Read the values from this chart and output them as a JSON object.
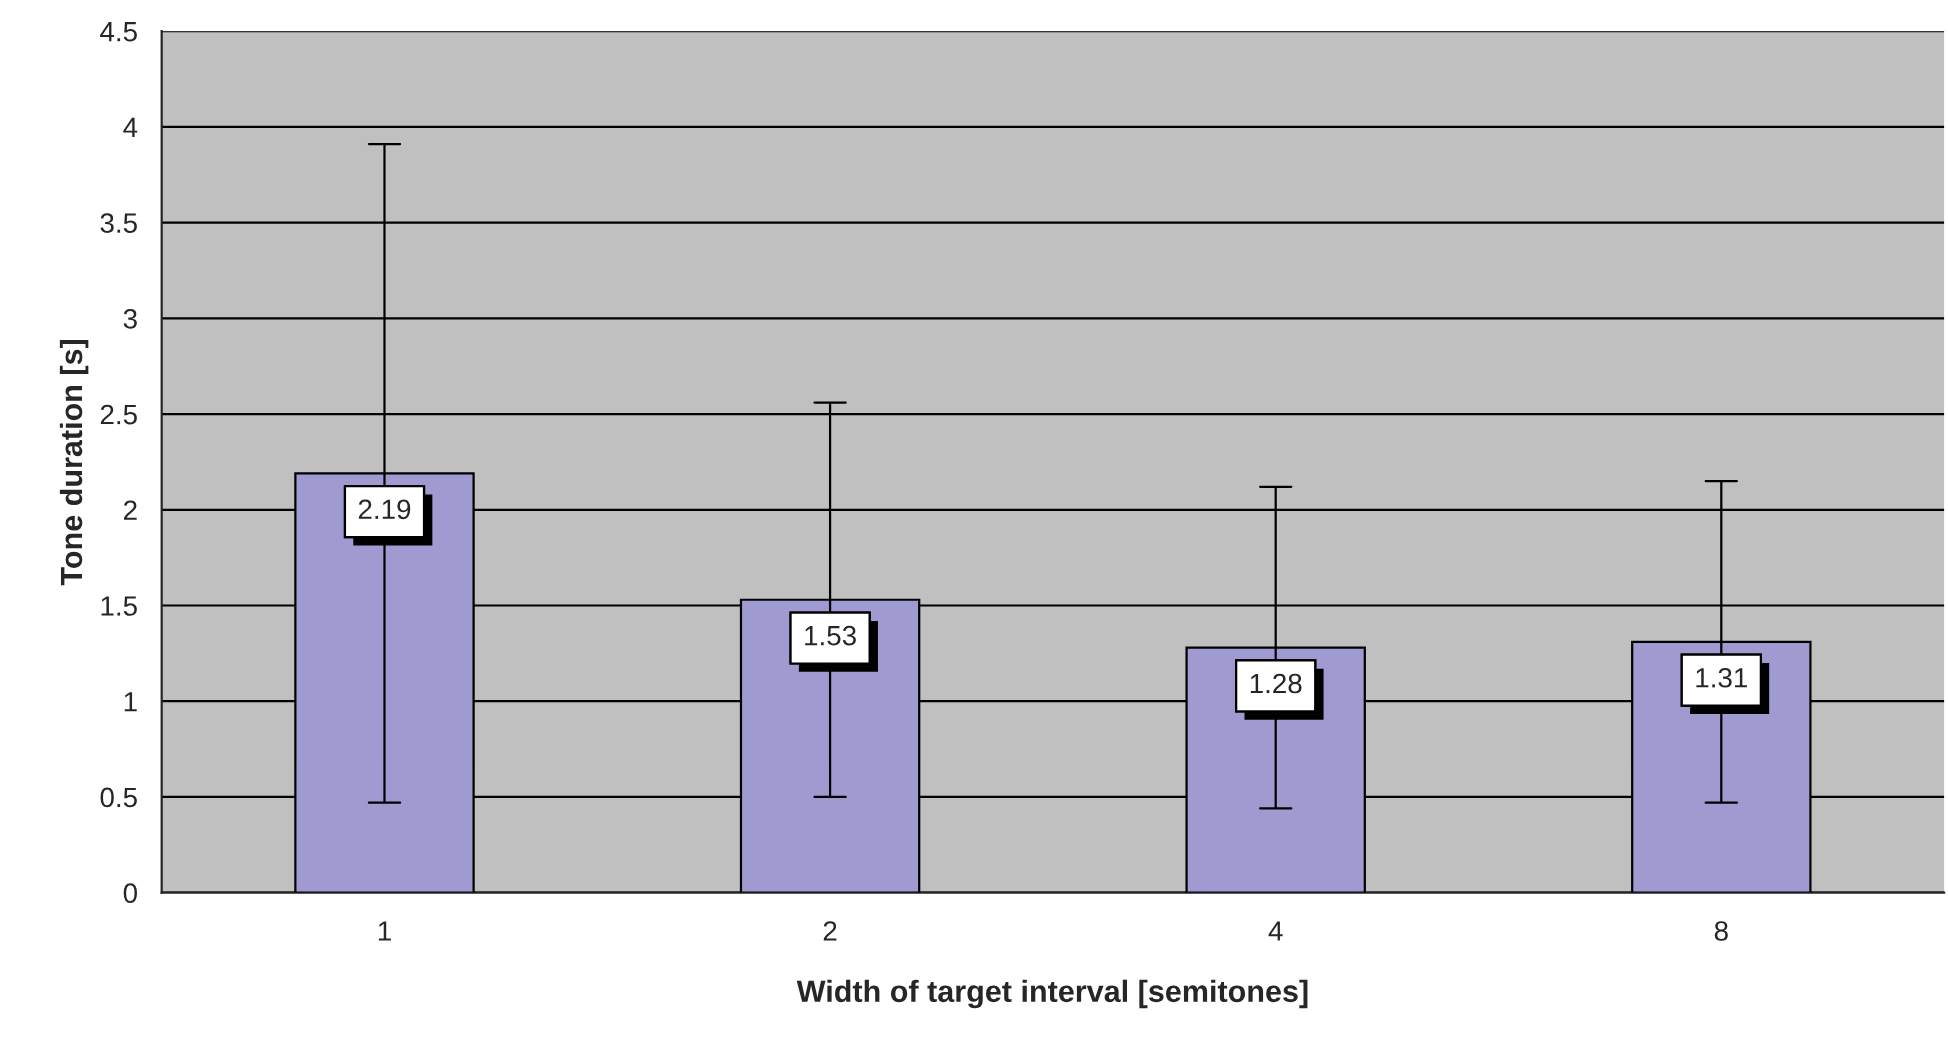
{
  "chart_data": {
    "type": "bar",
    "xlabel": "Width of target interval [semitones]",
    "ylabel": "Tone duration [s]",
    "categories": [
      "1",
      "2",
      "4",
      "8"
    ],
    "values": [
      2.19,
      1.53,
      1.28,
      1.31
    ],
    "errors": [
      1.72,
      1.03,
      0.84,
      0.84
    ],
    "color": "#9f9ad0",
    "ylim": [
      0,
      4.5
    ],
    "yticks": [
      0,
      0.5,
      1,
      1.5,
      2,
      2.5,
      3,
      3.5,
      4,
      4.5
    ],
    "grid": "y",
    "data_labels": true
  }
}
